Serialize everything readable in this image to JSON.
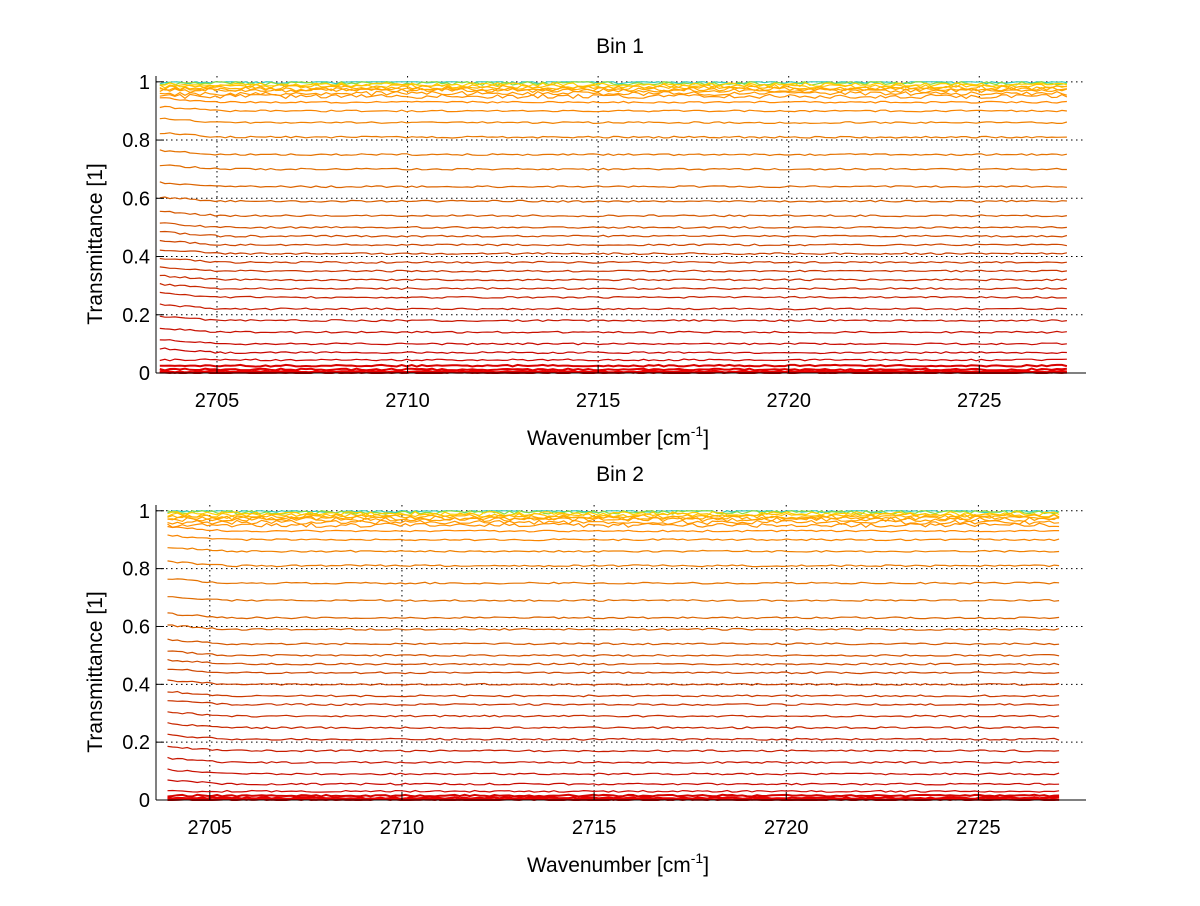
{
  "chart_data": [
    {
      "type": "line",
      "title": "Bin 1",
      "xlabel": "Wavenumber [cm",
      "xlabel_sup": "-1",
      "xlabel_end": "]",
      "ylabel": "Transmittance [1]",
      "xlim": [
        2703.4,
        2727.8
      ],
      "ylim": [
        0,
        1.02
      ],
      "xticks": [
        2705,
        2710,
        2715,
        2720,
        2725
      ],
      "yticks": [
        0,
        0.2,
        0.4,
        0.6,
        0.8,
        1
      ],
      "ytick_labels": [
        "0",
        "0.2",
        "0.4",
        "0.6",
        "0.8",
        "1"
      ],
      "grid": true,
      "x_range": [
        2703.5,
        2727.3
      ],
      "series_levels": [
        1.0,
        0.995,
        0.99,
        0.985,
        0.98,
        0.975,
        0.97,
        0.96,
        0.95,
        0.93,
        0.9,
        0.86,
        0.81,
        0.75,
        0.7,
        0.64,
        0.59,
        0.54,
        0.5,
        0.47,
        0.44,
        0.41,
        0.38,
        0.35,
        0.32,
        0.29,
        0.26,
        0.22,
        0.18,
        0.14,
        0.1,
        0.07,
        0.045,
        0.025,
        0.012,
        0.005,
        0.002,
        0.0
      ],
      "series_colors": [
        "#33ccbb",
        "#88dd44",
        "#ffd000",
        "#ffc000",
        "#ffb000",
        "#ffa800",
        "#ffa000",
        "#ff9800",
        "#ff9000",
        "#ff8800",
        "#f88400",
        "#f08000",
        "#ea7800",
        "#e57200",
        "#e06c00",
        "#dc6400",
        "#d85e00",
        "#d55800",
        "#d35200",
        "#d04c00",
        "#ce4600",
        "#cc4000",
        "#cb3a00",
        "#ca3400",
        "#c92e00",
        "#c82800",
        "#c72200",
        "#c71c00",
        "#c71600",
        "#c81000",
        "#c80a00",
        "#c80600",
        "#d00400",
        "#d80200",
        "#e00000",
        "#e80000",
        "#f00000",
        "#f80000"
      ]
    },
    {
      "type": "line",
      "title": "Bin 2",
      "xlabel": "Wavenumber [cm",
      "xlabel_sup": "-1",
      "xlabel_end": "]",
      "ylabel": "Transmittance [1]",
      "xlim": [
        2703.6,
        2727.8
      ],
      "ylim": [
        0,
        1.02
      ],
      "xticks": [
        2705,
        2710,
        2715,
        2720,
        2725
      ],
      "yticks": [
        0,
        0.2,
        0.4,
        0.6,
        0.8,
        1
      ],
      "ytick_labels": [
        "0",
        "0.2",
        "0.4",
        "0.6",
        "0.8",
        "1"
      ],
      "grid": true,
      "x_range": [
        2703.9,
        2727.1
      ],
      "series_levels": [
        1.0,
        0.995,
        0.99,
        0.985,
        0.98,
        0.975,
        0.97,
        0.96,
        0.95,
        0.93,
        0.9,
        0.86,
        0.81,
        0.75,
        0.69,
        0.63,
        0.59,
        0.54,
        0.5,
        0.47,
        0.44,
        0.4,
        0.36,
        0.33,
        0.29,
        0.25,
        0.21,
        0.17,
        0.13,
        0.09,
        0.055,
        0.03,
        0.015,
        0.007,
        0.003,
        0.0
      ],
      "series_colors": [
        "#33ccbb",
        "#88dd44",
        "#ffd000",
        "#ffc000",
        "#ffb000",
        "#ffa800",
        "#ffa000",
        "#ff9800",
        "#ff9000",
        "#ff8800",
        "#f88400",
        "#f08000",
        "#ea7800",
        "#e57200",
        "#e06c00",
        "#dc6400",
        "#d85e00",
        "#d55800",
        "#d35200",
        "#d04c00",
        "#ce4600",
        "#cc4000",
        "#cb3a00",
        "#ca3400",
        "#c92e00",
        "#c82800",
        "#c72200",
        "#c71c00",
        "#c71600",
        "#c81000",
        "#c80a00",
        "#d00600",
        "#d80300",
        "#e00000",
        "#ec0000",
        "#f80000"
      ]
    }
  ]
}
